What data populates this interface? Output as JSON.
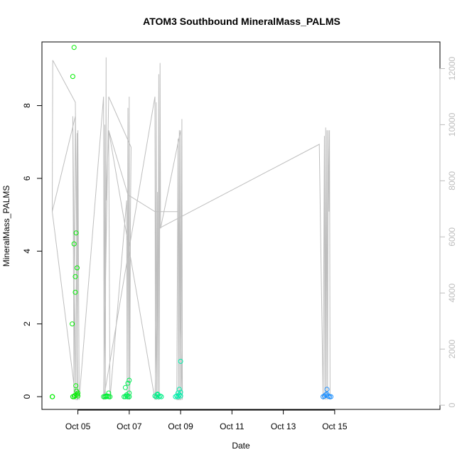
{
  "chart_data": {
    "type": "scatter",
    "title": "ATOM3 Southbound MineralMass_PALMS",
    "xlabel": "Date",
    "ylabel": "MineralMass_PALMS",
    "x_unit": "days since Oct 04 00:00",
    "xlim": [
      -0.4,
      15.1
    ],
    "ylim": [
      -0.35,
      9.75
    ],
    "y2lim": [
      -150,
      12950
    ],
    "x_ticks": [
      {
        "v": 1,
        "label": "Oct 05"
      },
      {
        "v": 3,
        "label": "Oct 07"
      },
      {
        "v": 5,
        "label": "Oct 09"
      },
      {
        "v": 7,
        "label": "Oct 11"
      },
      {
        "v": 9,
        "label": "Oct 13"
      },
      {
        "v": 11,
        "label": "Oct 15"
      }
    ],
    "y_ticks": [
      0,
      2,
      4,
      6,
      8
    ],
    "y2_ticks": [
      0,
      2000,
      4000,
      6000,
      8000,
      10000,
      12000
    ],
    "grid": false,
    "legend": "none",
    "colors": {
      "axis": "#000000",
      "altitude_line": "#bebebe",
      "right_axis": "#bdbdbd"
    },
    "series": [
      {
        "color": "#00ee00",
        "points": [
          [
            0.0,
            0.0
          ],
          [
            0.01,
            0.0
          ],
          [
            0.8,
            0.0
          ],
          [
            0.85,
            0.0
          ],
          [
            0.78,
            2.0
          ],
          [
            0.8,
            8.8
          ],
          [
            0.85,
            9.6
          ],
          [
            0.85,
            4.2
          ],
          [
            0.9,
            3.3
          ],
          [
            0.9,
            2.87
          ],
          [
            0.93,
            4.5
          ],
          [
            0.97,
            3.54
          ],
          [
            0.92,
            0.3
          ],
          [
            0.95,
            0.15
          ],
          [
            0.97,
            0.06
          ],
          [
            1.0,
            0.1
          ],
          [
            0.88,
            0.03
          ],
          [
            1.0,
            0.02
          ]
        ]
      },
      {
        "color": "#00ee33",
        "points": [
          [
            2.0,
            0.0
          ],
          [
            2.05,
            0.0
          ],
          [
            2.1,
            0.02
          ],
          [
            2.1,
            0.0
          ],
          [
            2.15,
            0.02
          ],
          [
            2.2,
            0.0
          ],
          [
            2.25,
            0.0
          ],
          [
            2.2,
            0.1
          ]
        ]
      },
      {
        "color": "#00ee55",
        "points": [
          [
            2.8,
            0.0
          ],
          [
            2.85,
            0.0
          ],
          [
            2.9,
            0.02
          ],
          [
            2.95,
            0.0
          ],
          [
            3.0,
            0.0
          ],
          [
            2.85,
            0.25
          ],
          [
            2.95,
            0.37
          ],
          [
            3.0,
            0.45
          ],
          [
            3.0,
            0.1
          ],
          [
            2.9,
            0.05
          ]
        ]
      },
      {
        "color": "#00ee88",
        "points": [
          [
            4.0,
            0.02
          ],
          [
            4.05,
            0.0
          ],
          [
            4.1,
            0.05
          ],
          [
            4.15,
            0.0
          ],
          [
            4.2,
            0.02
          ],
          [
            4.25,
            0.0
          ],
          [
            4.1,
            0.07
          ]
        ]
      },
      {
        "color": "#00eeaa",
        "points": [
          [
            4.8,
            0.0
          ],
          [
            4.85,
            0.02
          ],
          [
            4.9,
            0.0
          ],
          [
            4.95,
            0.05
          ],
          [
            5.0,
            0.02
          ],
          [
            4.95,
            0.2
          ],
          [
            5.0,
            0.12
          ],
          [
            5.0,
            0.97
          ],
          [
            4.9,
            0.1
          ]
        ]
      },
      {
        "color": "#1e90ff",
        "points": [
          [
            10.55,
            0.0
          ],
          [
            10.6,
            0.02
          ],
          [
            10.65,
            0.05
          ],
          [
            10.7,
            0.2
          ],
          [
            10.75,
            0.02
          ],
          [
            10.8,
            0.0
          ],
          [
            10.7,
            0.07
          ],
          [
            10.85,
            0.0
          ]
        ]
      }
    ],
    "altitude": {
      "axis": "right",
      "polyline": [
        [
          0.0,
          6900
        ],
        [
          0.02,
          12300
        ],
        [
          0.9,
          10800
        ],
        [
          0.95,
          6000
        ],
        [
          1.0,
          200
        ],
        [
          0.92,
          200
        ],
        [
          0.0,
          6900
        ],
        [
          0.9,
          10300
        ],
        [
          0.85,
          200
        ],
        [
          0.8,
          10300
        ],
        [
          0.92,
          200
        ],
        [
          0.97,
          9700
        ],
        [
          0.98,
          200
        ],
        [
          1.0,
          9800
        ],
        [
          1.05,
          200
        ],
        [
          2.0,
          11000
        ],
        [
          2.02,
          200
        ],
        [
          2.05,
          10000
        ],
        [
          2.07,
          200
        ],
        [
          2.1,
          12400
        ],
        [
          2.1,
          7300
        ],
        [
          2.2,
          9800
        ],
        [
          2.25,
          200
        ],
        [
          2.9,
          7300
        ],
        [
          2.92,
          200
        ],
        [
          2.95,
          10600
        ],
        [
          2.98,
          200
        ],
        [
          3.0,
          11000
        ],
        [
          3.02,
          200
        ],
        [
          3.05,
          6800
        ],
        [
          3.07,
          9200
        ],
        [
          2.2,
          11000
        ],
        [
          2.0,
          200
        ],
        [
          4.0,
          11000
        ],
        [
          4.02,
          200
        ],
        [
          4.05,
          10800
        ],
        [
          4.07,
          200
        ],
        [
          4.1,
          7600
        ],
        [
          4.12,
          200
        ],
        [
          4.15,
          11800
        ],
        [
          4.17,
          200
        ],
        [
          4.2,
          12200
        ],
        [
          4.22,
          6300
        ],
        [
          5.0,
          9800
        ],
        [
          5.02,
          200
        ],
        [
          4.85,
          200
        ],
        [
          4.9,
          9500
        ],
        [
          4.92,
          200
        ],
        [
          4.95,
          9800
        ],
        [
          4.97,
          200
        ],
        [
          5.0,
          9800
        ],
        [
          5.02,
          200
        ],
        [
          5.05,
          10200
        ],
        [
          5.07,
          200
        ],
        [
          4.9,
          6900
        ],
        [
          4.0,
          6900
        ],
        [
          2.95,
          7500
        ],
        [
          2.2,
          9800
        ],
        [
          4.0,
          200
        ],
        [
          4.15,
          6300
        ],
        [
          10.4,
          9300
        ],
        [
          10.55,
          200
        ],
        [
          10.6,
          9600
        ],
        [
          10.62,
          200
        ],
        [
          10.65,
          9900
        ],
        [
          10.67,
          200
        ],
        [
          10.7,
          9800
        ],
        [
          10.72,
          200
        ],
        [
          10.75,
          9800
        ],
        [
          10.78,
          6900
        ],
        [
          10.8,
          9800
        ],
        [
          10.82,
          200
        ]
      ]
    }
  }
}
